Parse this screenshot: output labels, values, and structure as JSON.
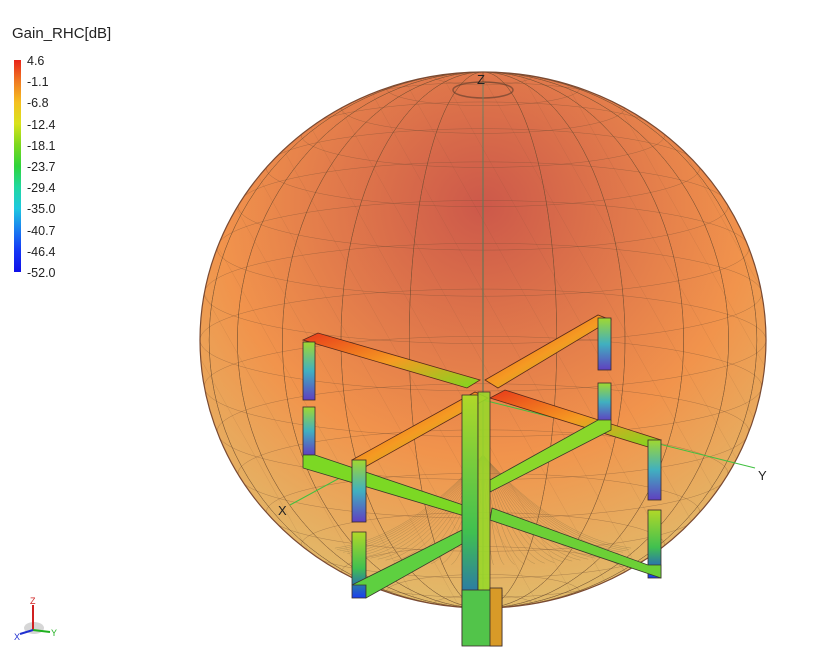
{
  "legend": {
    "title": "Gain_RHC[dB]",
    "ticks": [
      "4.6",
      "-1.1",
      "-6.8",
      "-12.4",
      "-18.1",
      "-23.7",
      "-29.4",
      "-35.0",
      "-40.7",
      "-46.4",
      "-52.0"
    ],
    "gradient_colors": [
      "#e8241a",
      "#f07a22",
      "#f5c020",
      "#d8e21c",
      "#7dd81e",
      "#2fd43a",
      "#20d8a0",
      "#1ec8e0",
      "#1a7ef0",
      "#1436f5",
      "#1010e8"
    ]
  },
  "axes": {
    "z": "Z",
    "y": "Y",
    "x": "X"
  },
  "triad": {
    "x": "X",
    "y": "Y",
    "z": "Z",
    "colors": {
      "x": "#2030d0",
      "y": "#20b020",
      "z": "#d02020"
    }
  },
  "colors": {
    "sphere_top": "#c84a3a",
    "sphere_mid": "#f08a3c",
    "sphere_bottom": "#d8c46a",
    "mesh": "#6a4a30",
    "element_hot": "#e8401e",
    "element_mid": "#8ad82a",
    "element_cold": "#2848e8"
  }
}
